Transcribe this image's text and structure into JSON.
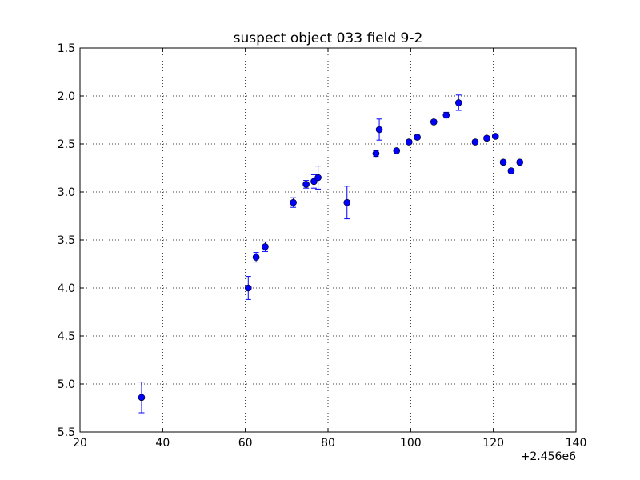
{
  "chart_data": {
    "type": "scatter",
    "title": "suspect object 033 field 9-2",
    "xlabel": "",
    "ylabel": "",
    "x_offset_label": "+2.456e6",
    "xlim": [
      20,
      140
    ],
    "ylim": [
      1.5,
      5.5
    ],
    "y_inverted": true,
    "grid": true,
    "x_ticks": [
      "20",
      "40",
      "60",
      "80",
      "100",
      "120",
      "140"
    ],
    "y_ticks": [
      "1.5",
      "2.0",
      "2.5",
      "3.0",
      "3.5",
      "4.0",
      "4.5",
      "5.0",
      "5.5"
    ],
    "marker_color": "#0000ff",
    "errorbar_color": "#0000ff",
    "series": [
      {
        "points": [
          {
            "x": 34.9,
            "y": 5.14,
            "err": 0.16
          },
          {
            "x": 60.7,
            "y": 4.0,
            "err": 0.12
          },
          {
            "x": 62.6,
            "y": 3.68,
            "err": 0.05
          },
          {
            "x": 64.8,
            "y": 3.57,
            "err": 0.05
          },
          {
            "x": 71.6,
            "y": 3.11,
            "err": 0.05
          },
          {
            "x": 74.7,
            "y": 2.92,
            "err": 0.04
          },
          {
            "x": 76.6,
            "y": 2.89,
            "err": 0.07
          },
          {
            "x": 77.6,
            "y": 2.85,
            "err": 0.12
          },
          {
            "x": 84.6,
            "y": 3.11,
            "err": 0.17
          },
          {
            "x": 91.6,
            "y": 2.6,
            "err": 0.03
          },
          {
            "x": 92.4,
            "y": 2.35,
            "err": 0.11
          },
          {
            "x": 96.6,
            "y": 2.57,
            "err": 0.02
          },
          {
            "x": 99.6,
            "y": 2.48,
            "err": 0.02
          },
          {
            "x": 101.6,
            "y": 2.43,
            "err": 0.02
          },
          {
            "x": 105.6,
            "y": 2.27,
            "err": 0.02
          },
          {
            "x": 108.6,
            "y": 2.2,
            "err": 0.03
          },
          {
            "x": 111.6,
            "y": 2.07,
            "err": 0.08
          },
          {
            "x": 115.6,
            "y": 2.48,
            "err": 0.02
          },
          {
            "x": 118.4,
            "y": 2.44,
            "err": 0.02
          },
          {
            "x": 120.5,
            "y": 2.42,
            "err": 0.02
          },
          {
            "x": 122.4,
            "y": 2.69,
            "err": 0.02
          },
          {
            "x": 124.3,
            "y": 2.78,
            "err": 0.02
          },
          {
            "x": 126.4,
            "y": 2.69,
            "err": 0.02
          }
        ]
      }
    ]
  }
}
